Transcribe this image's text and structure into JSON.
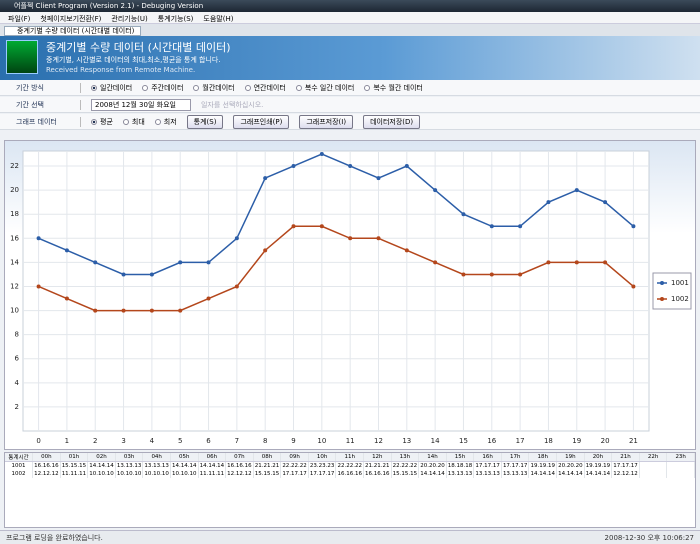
{
  "window": {
    "title": "어플젝 Client Program (Version 2.1) - Debuging Version",
    "menu": [
      "파일(F)",
      "첫페이지보기전환(F)",
      "관리기능(U)",
      "통계기능(S)",
      "도움말(H)"
    ]
  },
  "tab": "중계기별 수량 데이터 (시간대별 데이터)",
  "header": {
    "title": "중계기별 수량 데이터 (시간대별 데이터)",
    "subtitle": "중계기별, 시간별로 데이터의 최대,최소,평균을 통계 합니다.",
    "status": "Received Response from Remote Machine."
  },
  "controls": {
    "period_mode": {
      "label": "기간 방식",
      "options": [
        "일간데이터",
        "주간데이터",
        "월간데이터",
        "연간데이터",
        "복수 일간 데이터",
        "복수 월간 데이터"
      ],
      "selected": 0
    },
    "period_select": {
      "label": "기간 선택",
      "date": "2008년 12월 30일 화요일",
      "hint": "일자를 선택하십시오."
    },
    "graph_data": {
      "label": "그래프 데이터",
      "options": [
        "평균",
        "최대",
        "최저"
      ],
      "selected": 0,
      "buttons": [
        "통계(S)",
        "그래프인쇄(P)",
        "그래프저장(I)",
        "데이터저장(D)"
      ]
    }
  },
  "chart_data": {
    "type": "line",
    "x": [
      0,
      1,
      2,
      3,
      4,
      5,
      6,
      7,
      8,
      9,
      10,
      11,
      12,
      13,
      14,
      15,
      16,
      17,
      18,
      19,
      20,
      21
    ],
    "xlim": [
      -0.55,
      21.55
    ],
    "xticks": [
      0,
      1,
      2,
      3,
      4,
      5,
      6,
      7,
      8,
      9,
      10,
      11,
      12,
      13,
      14,
      15,
      16,
      17,
      18,
      19,
      20,
      21
    ],
    "ylim": [
      0,
      23.25
    ],
    "yticks": [
      2,
      4,
      6,
      8,
      10,
      12,
      14,
      16,
      18,
      20,
      22
    ],
    "grid": true,
    "legend": "right",
    "series": [
      {
        "name": "1001",
        "color": "#2c5ea8",
        "values": [
          16,
          15,
          14,
          13,
          13,
          14,
          14,
          16,
          21,
          22,
          23,
          22,
          21,
          22,
          20,
          18,
          17,
          17,
          19,
          20,
          19,
          17
        ]
      },
      {
        "name": "1002",
        "color": "#b4471c",
        "values": [
          12,
          11,
          10,
          10,
          10,
          10,
          11,
          12,
          15,
          17,
          17,
          16,
          16,
          15,
          14,
          13,
          13,
          13,
          14,
          14,
          14,
          12
        ]
      }
    ]
  },
  "table": {
    "header": [
      "통계시간",
      "00h",
      "01h",
      "02h",
      "03h",
      "04h",
      "05h",
      "06h",
      "07h",
      "08h",
      "09h",
      "10h",
      "11h",
      "12h",
      "13h",
      "14h",
      "15h",
      "16h",
      "17h",
      "18h",
      "19h",
      "20h",
      "21h",
      "22h",
      "23h"
    ],
    "rows": [
      [
        "1001",
        "16.16.16",
        "15.15.15",
        "14.14.14",
        "13.13.13",
        "13.13.13",
        "14.14.14",
        "14.14.14",
        "16.16.16",
        "21.21.21",
        "22.22.22",
        "23.23.23",
        "22.22.22",
        "21.21.21",
        "22.22.22",
        "20.20.20",
        "18.18.18",
        "17.17.17",
        "17.17.17",
        "19.19.19",
        "20.20.20",
        "19.19.19",
        "17.17.17",
        null,
        null
      ],
      [
        "1002",
        "12.12.12",
        "11.11.11",
        "10.10.10",
        "10.10.10",
        "10.10.10",
        "10.10.10",
        "11.11.11",
        "12.12.12",
        "15.15.15",
        "17.17.17",
        "17.17.17",
        "16.16.16",
        "16.16.16",
        "15.15.15",
        "14.14.14",
        "13.13.13",
        "13.13.13",
        "13.13.13",
        "14.14.14",
        "14.14.14",
        "14.14.14",
        "12.12.12",
        null,
        null
      ]
    ]
  },
  "status": {
    "message": "프로그램 로딩을 완료하였습니다.",
    "time": "2008-12-30 오후 10:06:27"
  }
}
